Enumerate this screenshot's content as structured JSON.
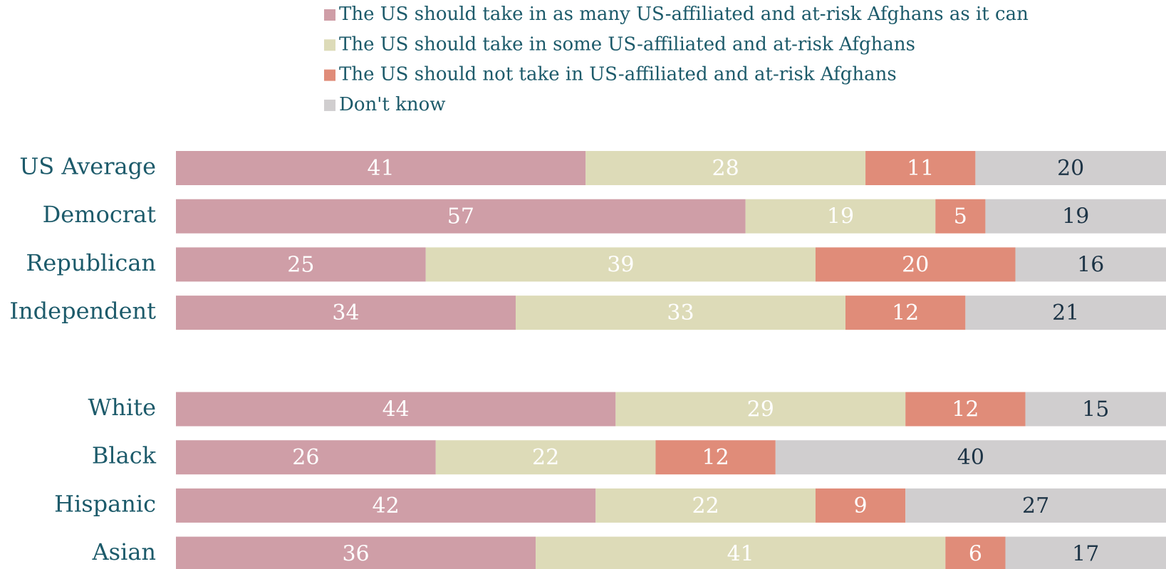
{
  "chart_data": {
    "type": "stacked-bar-horizontal",
    "categories": [
      "US Average",
      "Democrat",
      "Republican",
      "Independent",
      null,
      "White",
      "Black",
      "Hispanic",
      "Asian"
    ],
    "series": [
      {
        "name": "The US should take in as many US-affiliated and at-risk Afghans as it can",
        "color": "#cf9ea7",
        "values": [
          41,
          57,
          25,
          34,
          null,
          44,
          26,
          42,
          36
        ]
      },
      {
        "name": "The US should take in some US-affiliated and at-risk Afghans",
        "color": "#dddbb8",
        "values": [
          28,
          19,
          39,
          33,
          null,
          29,
          22,
          22,
          41
        ]
      },
      {
        "name": "The US should not take in US-affiliated and at-risk Afghans",
        "color": "#e08c79",
        "values": [
          11,
          5,
          20,
          12,
          null,
          12,
          12,
          9,
          6
        ]
      },
      {
        "name": "Don't know",
        "color": "#d0cecf",
        "values": [
          20,
          19,
          16,
          21,
          null,
          15,
          40,
          27,
          17
        ]
      }
    ],
    "xlim": [
      0,
      100
    ]
  }
}
